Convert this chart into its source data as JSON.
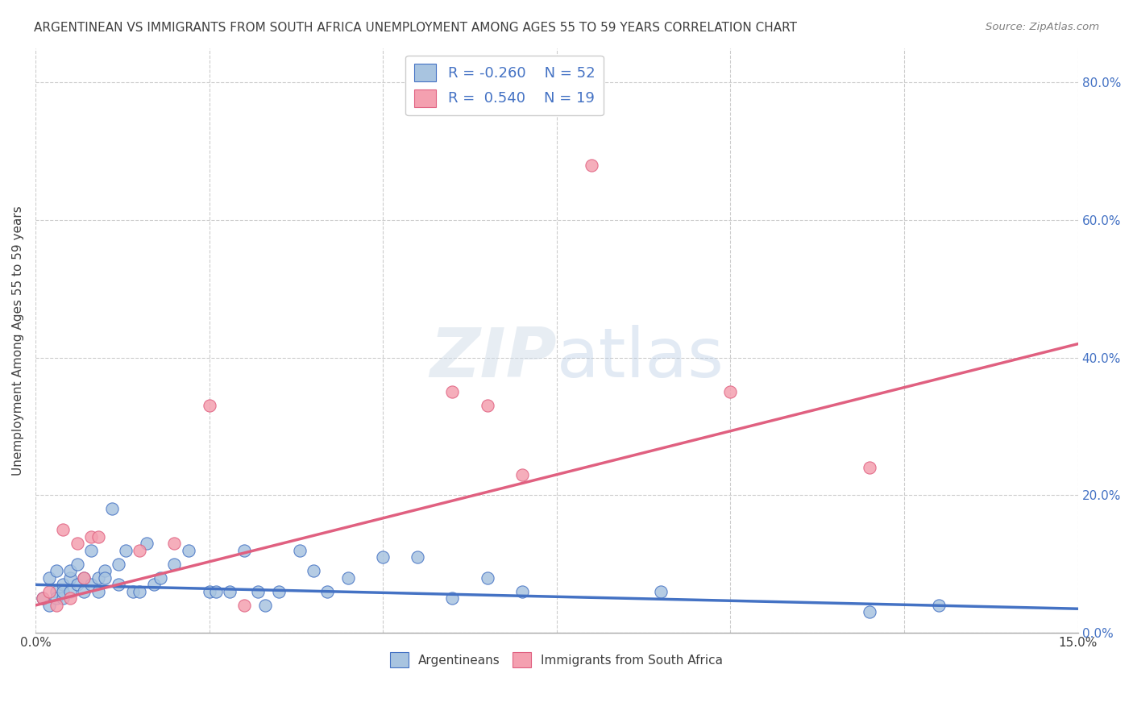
{
  "title": "ARGENTINEAN VS IMMIGRANTS FROM SOUTH AFRICA UNEMPLOYMENT AMONG AGES 55 TO 59 YEARS CORRELATION CHART",
  "source": "Source: ZipAtlas.com",
  "xlabel": "",
  "ylabel": "Unemployment Among Ages 55 to 59 years",
  "xlim": [
    0.0,
    0.15
  ],
  "ylim": [
    0.0,
    0.85
  ],
  "xticks": [
    0.0,
    0.025,
    0.05,
    0.075,
    0.1,
    0.125,
    0.15
  ],
  "yticks_right": [
    0.0,
    0.2,
    0.4,
    0.6,
    0.8
  ],
  "ytick_labels_right": [
    "0.0%",
    "20.0%",
    "40.0%",
    "60.0%",
    "80.0%"
  ],
  "xtick_labels": [
    "0.0%",
    "",
    "",
    "",
    "",
    "",
    "15.0%"
  ],
  "background_color": "#ffffff",
  "grid_color": "#cccccc",
  "blue_color": "#a8c4e0",
  "pink_color": "#f4a0b0",
  "blue_line_color": "#4472c4",
  "pink_line_color": "#e06080",
  "title_color": "#404040",
  "watermark_text": "ZIPatlas",
  "legend_R_blue": "-0.260",
  "legend_N_blue": "52",
  "legend_R_pink": "0.540",
  "legend_N_pink": "19",
  "blue_scatter_x": [
    0.001,
    0.002,
    0.002,
    0.003,
    0.003,
    0.003,
    0.004,
    0.004,
    0.004,
    0.005,
    0.005,
    0.005,
    0.006,
    0.006,
    0.007,
    0.007,
    0.008,
    0.008,
    0.009,
    0.009,
    0.01,
    0.01,
    0.011,
    0.012,
    0.012,
    0.013,
    0.014,
    0.015,
    0.016,
    0.017,
    0.018,
    0.02,
    0.022,
    0.025,
    0.026,
    0.028,
    0.03,
    0.032,
    0.033,
    0.035,
    0.038,
    0.04,
    0.042,
    0.045,
    0.05,
    0.055,
    0.06,
    0.065,
    0.07,
    0.09,
    0.12,
    0.13
  ],
  "blue_scatter_y": [
    0.05,
    0.04,
    0.08,
    0.06,
    0.09,
    0.05,
    0.07,
    0.05,
    0.06,
    0.08,
    0.06,
    0.09,
    0.07,
    0.1,
    0.08,
    0.06,
    0.07,
    0.12,
    0.06,
    0.08,
    0.09,
    0.08,
    0.18,
    0.1,
    0.07,
    0.12,
    0.06,
    0.06,
    0.13,
    0.07,
    0.08,
    0.1,
    0.12,
    0.06,
    0.06,
    0.06,
    0.12,
    0.06,
    0.04,
    0.06,
    0.12,
    0.09,
    0.06,
    0.08,
    0.11,
    0.11,
    0.05,
    0.08,
    0.06,
    0.06,
    0.03,
    0.04
  ],
  "pink_scatter_x": [
    0.001,
    0.002,
    0.003,
    0.004,
    0.005,
    0.006,
    0.007,
    0.008,
    0.009,
    0.015,
    0.02,
    0.025,
    0.03,
    0.06,
    0.065,
    0.07,
    0.08,
    0.1,
    0.12
  ],
  "pink_scatter_y": [
    0.05,
    0.06,
    0.04,
    0.15,
    0.05,
    0.13,
    0.08,
    0.14,
    0.14,
    0.12,
    0.13,
    0.33,
    0.04,
    0.35,
    0.33,
    0.23,
    0.68,
    0.35,
    0.24
  ],
  "blue_trend_x": [
    0.0,
    0.15
  ],
  "blue_trend_y": [
    0.07,
    0.035
  ],
  "pink_trend_x": [
    0.0,
    0.15
  ],
  "pink_trend_y": [
    0.04,
    0.42
  ]
}
